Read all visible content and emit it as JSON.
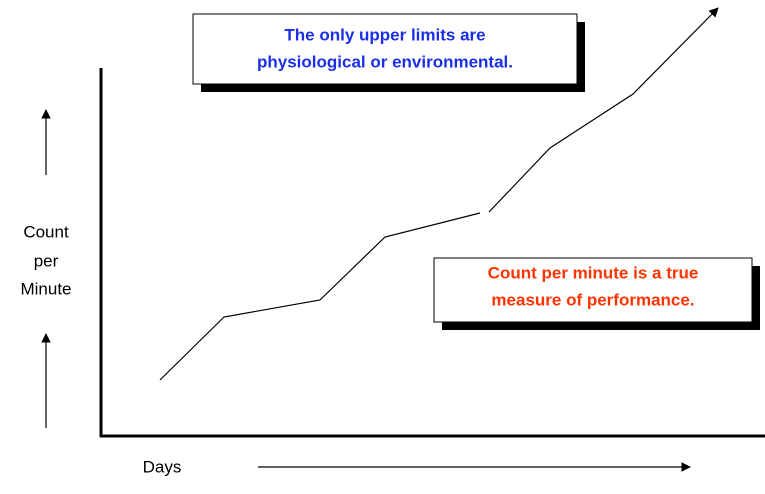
{
  "callouts": [
    {
      "lines": [
        "The only upper limits are",
        "physiological or environmental."
      ]
    },
    {
      "lines": [
        "Count per minute is a true",
        "measure of performance."
      ]
    }
  ],
  "y_axis_label": {
    "lines": [
      "Count",
      "per",
      "Minute"
    ]
  },
  "x_axis_label": "Days"
}
